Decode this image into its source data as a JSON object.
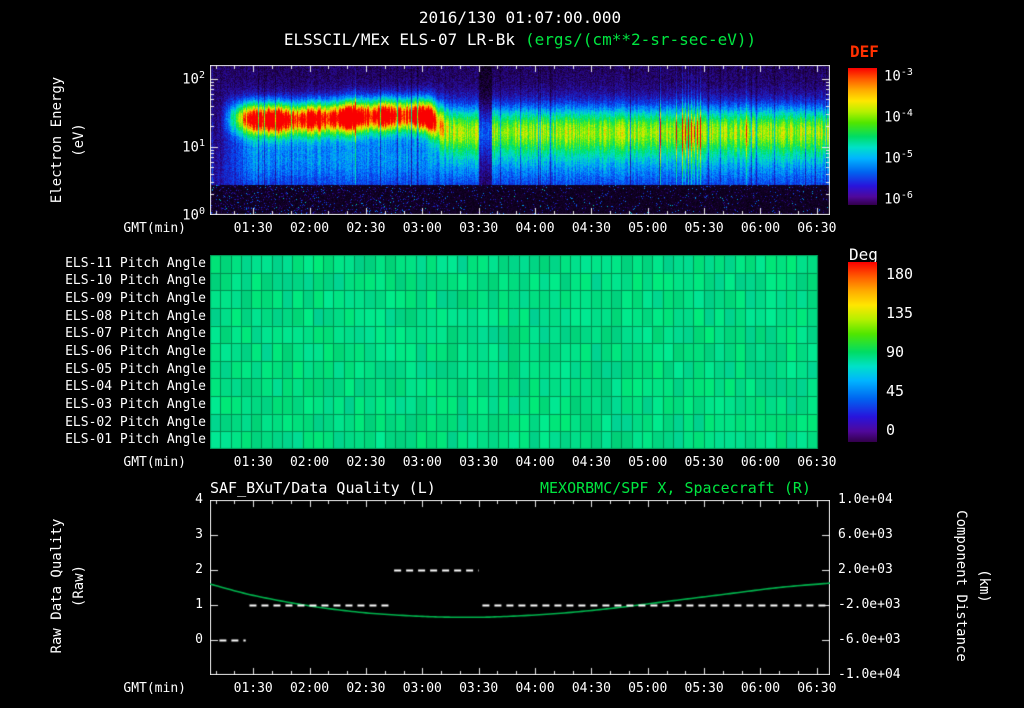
{
  "header": {
    "datetime": "2016/130 01:07:00.000",
    "instrument": "ELSSCIL/MEx ELS-07 LR-Bk",
    "units": "(ergs/(cm**2-sr-sec-eV))"
  },
  "colors": {
    "background": "#000000",
    "text": "#ffffff",
    "green_text": "#00e640",
    "red_text": "#ff3000",
    "curve_green": "#00b34d",
    "pitch_fill": "#00dc85",
    "pitch_grid": "#008c50"
  },
  "time_axis": {
    "label": "GMT(min)",
    "start_min": 67,
    "end_min": 397,
    "minor_step_min": 10,
    "ticks": [
      {
        "label": "01:30",
        "min": 90
      },
      {
        "label": "02:00",
        "min": 120
      },
      {
        "label": "02:30",
        "min": 150
      },
      {
        "label": "03:00",
        "min": 180
      },
      {
        "label": "03:30",
        "min": 210
      },
      {
        "label": "04:00",
        "min": 240
      },
      {
        "label": "04:30",
        "min": 270
      },
      {
        "label": "05:00",
        "min": 300
      },
      {
        "label": "05:30",
        "min": 330
      },
      {
        "label": "06:00",
        "min": 360
      },
      {
        "label": "06:30",
        "min": 390
      }
    ]
  },
  "spectrogram": {
    "ylabel_1": "Electron Energy",
    "ylabel_2": "(eV)",
    "y_log_top": 2.2,
    "y_ticks": [
      {
        "base": "10",
        "exp": "2",
        "log": 2
      },
      {
        "base": "10",
        "exp": "1",
        "log": 1
      },
      {
        "base": "10",
        "exp": "0",
        "log": 0
      }
    ],
    "colorbar": {
      "title": "DEF",
      "labels": [
        {
          "base": "10",
          "exp": "-3"
        },
        {
          "base": "10",
          "exp": "-4"
        },
        {
          "base": "10",
          "exp": "-5"
        },
        {
          "base": "10",
          "exp": "-6"
        }
      ]
    }
  },
  "pitch": {
    "colorbar": {
      "title": "Deg",
      "labels": [
        "180",
        "135",
        "90",
        "45",
        "0"
      ]
    }
  },
  "bottom": {
    "title_left": "SAF_BXuT/Data Quality (L)",
    "title_right": "MEXORBMC/SPF X, Spacecraft (R)",
    "ylabel_left_1": "Raw Data Quality",
    "ylabel_left_2": "(Raw)",
    "ylabel_right_1": "Component Distance",
    "ylabel_right_2": "(km)",
    "left_ticks": [
      "4",
      "3",
      "2",
      "1",
      "0"
    ],
    "right_ticks": [
      "1.0e+04",
      "6.0e+03",
      "2.0e+03",
      "-2.0e+03",
      "-6.0e+03",
      "-1.0e+04"
    ]
  },
  "chart_data": [
    {
      "type": "heatmap",
      "name": "electron-energy-spectrogram",
      "title": "ELSSCIL/MEx ELS-07 LR-Bk",
      "units": "ergs/(cm**2-sr-sec-eV)",
      "xlabel": "GMT(min)",
      "ylabel": "Electron Energy (eV)",
      "x_range_gmt": [
        "01:07",
        "06:37"
      ],
      "x_tick_labels": [
        "01:30",
        "02:00",
        "02:30",
        "03:00",
        "03:30",
        "04:00",
        "04:30",
        "05:00",
        "05:30",
        "06:00",
        "06:30"
      ],
      "y_scale": "log",
      "y_range_ev": [
        1,
        158
      ],
      "color_scale_log10_range": [
        -6,
        -3
      ],
      "features": [
        {
          "desc": "intense electron band",
          "t_start_min": 75,
          "t_end_min": 188,
          "energy_center_ev": 27,
          "peak_level_log10": -3.1
        },
        {
          "desc": "moderate electron band",
          "t_start_min": 188,
          "t_end_min": 397,
          "energy_center_ev": 18,
          "peak_level_log10": -4.2
        },
        {
          "desc": "data gap",
          "t_start_min": 210,
          "t_end_min": 217
        },
        {
          "desc": "bright vertical streaks",
          "t_start_min": 318,
          "t_end_min": 328
        }
      ]
    },
    {
      "type": "heatmap",
      "name": "pitch-angle-panel",
      "rows": [
        "ELS-11 Pitch Angle",
        "ELS-10 Pitch Angle",
        "ELS-09 Pitch Angle",
        "ELS-08 Pitch Angle",
        "ELS-07 Pitch Angle",
        "ELS-06 Pitch Angle",
        "ELS-05 Pitch Angle",
        "ELS-04 Pitch Angle",
        "ELS-03 Pitch Angle",
        "ELS-02 Pitch Angle",
        "ELS-01 Pitch Angle"
      ],
      "value_deg_all": 90,
      "deg_range": [
        0,
        180
      ],
      "fill_t_start_min": 67,
      "fill_t_end_min": 390
    },
    {
      "type": "line",
      "name": "quality-and-spacecraft-distance",
      "x_axis": {
        "label": "GMT(min)",
        "start_min": 67,
        "end_min": 397
      },
      "left_axis": {
        "label": "Raw Data Quality (Raw)",
        "range": [
          -1,
          4
        ],
        "ticks": [
          4,
          3,
          2,
          1,
          0
        ]
      },
      "right_axis": {
        "label": "Component Distance (km)",
        "range": [
          -10000,
          10000
        ],
        "ticks": [
          10000,
          6000,
          2000,
          -2000,
          -6000,
          -10000
        ]
      },
      "series": [
        {
          "name": "SAF_BXuT/Data Quality (L)",
          "axis": "left",
          "style": "dashed",
          "color": "#ffffff",
          "segments": [
            {
              "t0": 72,
              "t1": 86,
              "value": 0
            },
            {
              "t0": 88,
              "t1": 163,
              "value": 1
            },
            {
              "t0": 165,
              "t1": 210,
              "value": 2
            },
            {
              "t0": 212,
              "t1": 397,
              "value": 1
            }
          ]
        },
        {
          "name": "MEXORBMC/SPF X, Spacecraft (R)",
          "axis": "right",
          "style": "solid",
          "color": "#00b34d",
          "points": [
            [
              67,
              400
            ],
            [
              90,
              -900
            ],
            [
              120,
              -2100
            ],
            [
              150,
              -2900
            ],
            [
              180,
              -3300
            ],
            [
              200,
              -3400
            ],
            [
              220,
              -3350
            ],
            [
              250,
              -3000
            ],
            [
              280,
              -2400
            ],
            [
              310,
              -1600
            ],
            [
              340,
              -800
            ],
            [
              370,
              0
            ],
            [
              397,
              500
            ]
          ]
        }
      ]
    }
  ]
}
